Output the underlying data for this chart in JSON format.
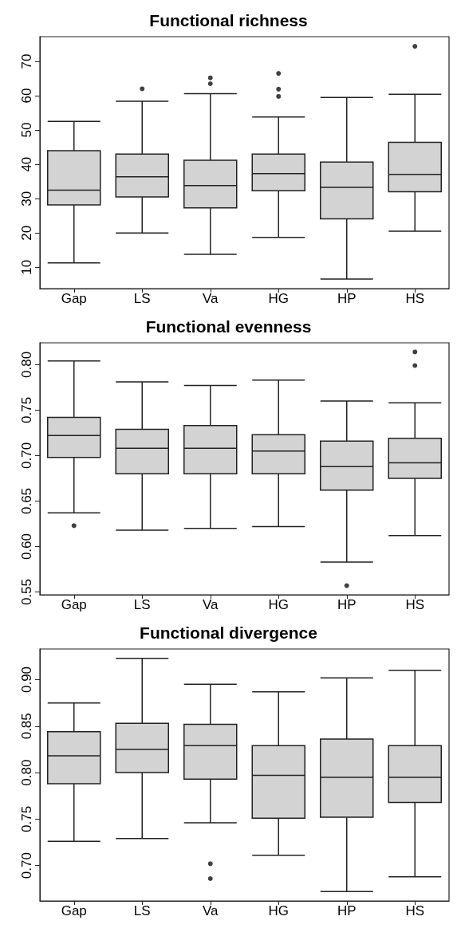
{
  "chart_data": [
    {
      "type": "box",
      "title": "Functional richness",
      "categories": [
        "Gap",
        "LS",
        "Va",
        "HG",
        "HP",
        "HS"
      ],
      "color": "#d3d3d3",
      "ylim": [
        3.8,
        77.2
      ],
      "yticks": [
        10,
        20,
        30,
        40,
        50,
        60,
        70
      ],
      "grid": false,
      "boxes": [
        {
          "low": 11.3,
          "q1": 28.2,
          "median": 32.5,
          "q3": 44,
          "high": 52.5
        },
        {
          "low": 20,
          "q1": 30.5,
          "median": 36.4,
          "q3": 43,
          "high": 58.4,
          "outliers": [
            62
          ]
        },
        {
          "low": 13.8,
          "q1": 27.3,
          "median": 33.8,
          "q3": 41.2,
          "high": 60.6,
          "outliers": [
            63.5,
            65.2
          ]
        },
        {
          "low": 18.7,
          "q1": 32.3,
          "median": 37.3,
          "q3": 43,
          "high": 53.8,
          "outliers": [
            59.8,
            61.9,
            66.5
          ]
        },
        {
          "low": 6.6,
          "q1": 24.1,
          "median": 33.3,
          "q3": 40.7,
          "high": 59.5
        },
        {
          "low": 20.5,
          "q1": 32,
          "median": 37.1,
          "q3": 46.4,
          "high": 60.4,
          "outliers": [
            74.4
          ]
        }
      ]
    },
    {
      "type": "box",
      "title": "Functional evenness",
      "categories": [
        "Gap",
        "LS",
        "Va",
        "HG",
        "HP",
        "HS"
      ],
      "color": "#d3d3d3",
      "ylim": [
        0.547,
        0.824
      ],
      "yticks": [
        0.55,
        {
          "value": 0.6,
          "label": "0.60"
        },
        0.65,
        {
          "value": 0.7,
          "label": "0.70"
        },
        0.75,
        {
          "value": 0.8,
          "label": "0.80"
        }
      ],
      "grid": false,
      "boxes": [
        {
          "low": 0.637,
          "q1": 0.698,
          "median": 0.722,
          "q3": 0.742,
          "high": 0.804,
          "outliers": [
            0.623
          ]
        },
        {
          "low": 0.618,
          "q1": 0.68,
          "median": 0.708,
          "q3": 0.729,
          "high": 0.781
        },
        {
          "low": 0.62,
          "q1": 0.68,
          "median": 0.708,
          "q3": 0.733,
          "high": 0.777
        },
        {
          "low": 0.622,
          "q1": 0.68,
          "median": 0.705,
          "q3": 0.723,
          "high": 0.783
        },
        {
          "low": 0.583,
          "q1": 0.662,
          "median": 0.688,
          "q3": 0.716,
          "high": 0.76,
          "outliers": [
            0.557
          ]
        },
        {
          "low": 0.612,
          "q1": 0.675,
          "median": 0.692,
          "q3": 0.719,
          "high": 0.758,
          "outliers": [
            0.799,
            0.814
          ]
        }
      ]
    },
    {
      "type": "box",
      "title": "Functional divergence",
      "categories": [
        "Gap",
        "LS",
        "Va",
        "HG",
        "HP",
        "HS"
      ],
      "color": "#d3d3d3",
      "ylim": [
        0.662,
        0.933
      ],
      "yticks": [
        {
          "value": 0.7,
          "label": "0.70"
        },
        0.75,
        {
          "value": 0.8,
          "label": "0.80"
        },
        0.85,
        {
          "value": 0.9,
          "label": "0.90"
        }
      ],
      "grid": false,
      "boxes": [
        {
          "low": 0.726,
          "q1": 0.788,
          "median": 0.818,
          "q3": 0.844,
          "high": 0.875
        },
        {
          "low": 0.729,
          "q1": 0.8,
          "median": 0.825,
          "q3": 0.853,
          "high": 0.923
        },
        {
          "low": 0.746,
          "q1": 0.793,
          "median": 0.829,
          "q3": 0.852,
          "high": 0.895,
          "outliers": [
            0.702,
            0.686
          ]
        },
        {
          "low": 0.711,
          "q1": 0.751,
          "median": 0.797,
          "q3": 0.829,
          "high": 0.887
        },
        {
          "low": 0.672,
          "q1": 0.752,
          "median": 0.795,
          "q3": 0.836,
          "high": 0.902
        },
        {
          "low": 0.688,
          "q1": 0.768,
          "median": 0.795,
          "q3": 0.829,
          "high": 0.91
        }
      ]
    }
  ]
}
